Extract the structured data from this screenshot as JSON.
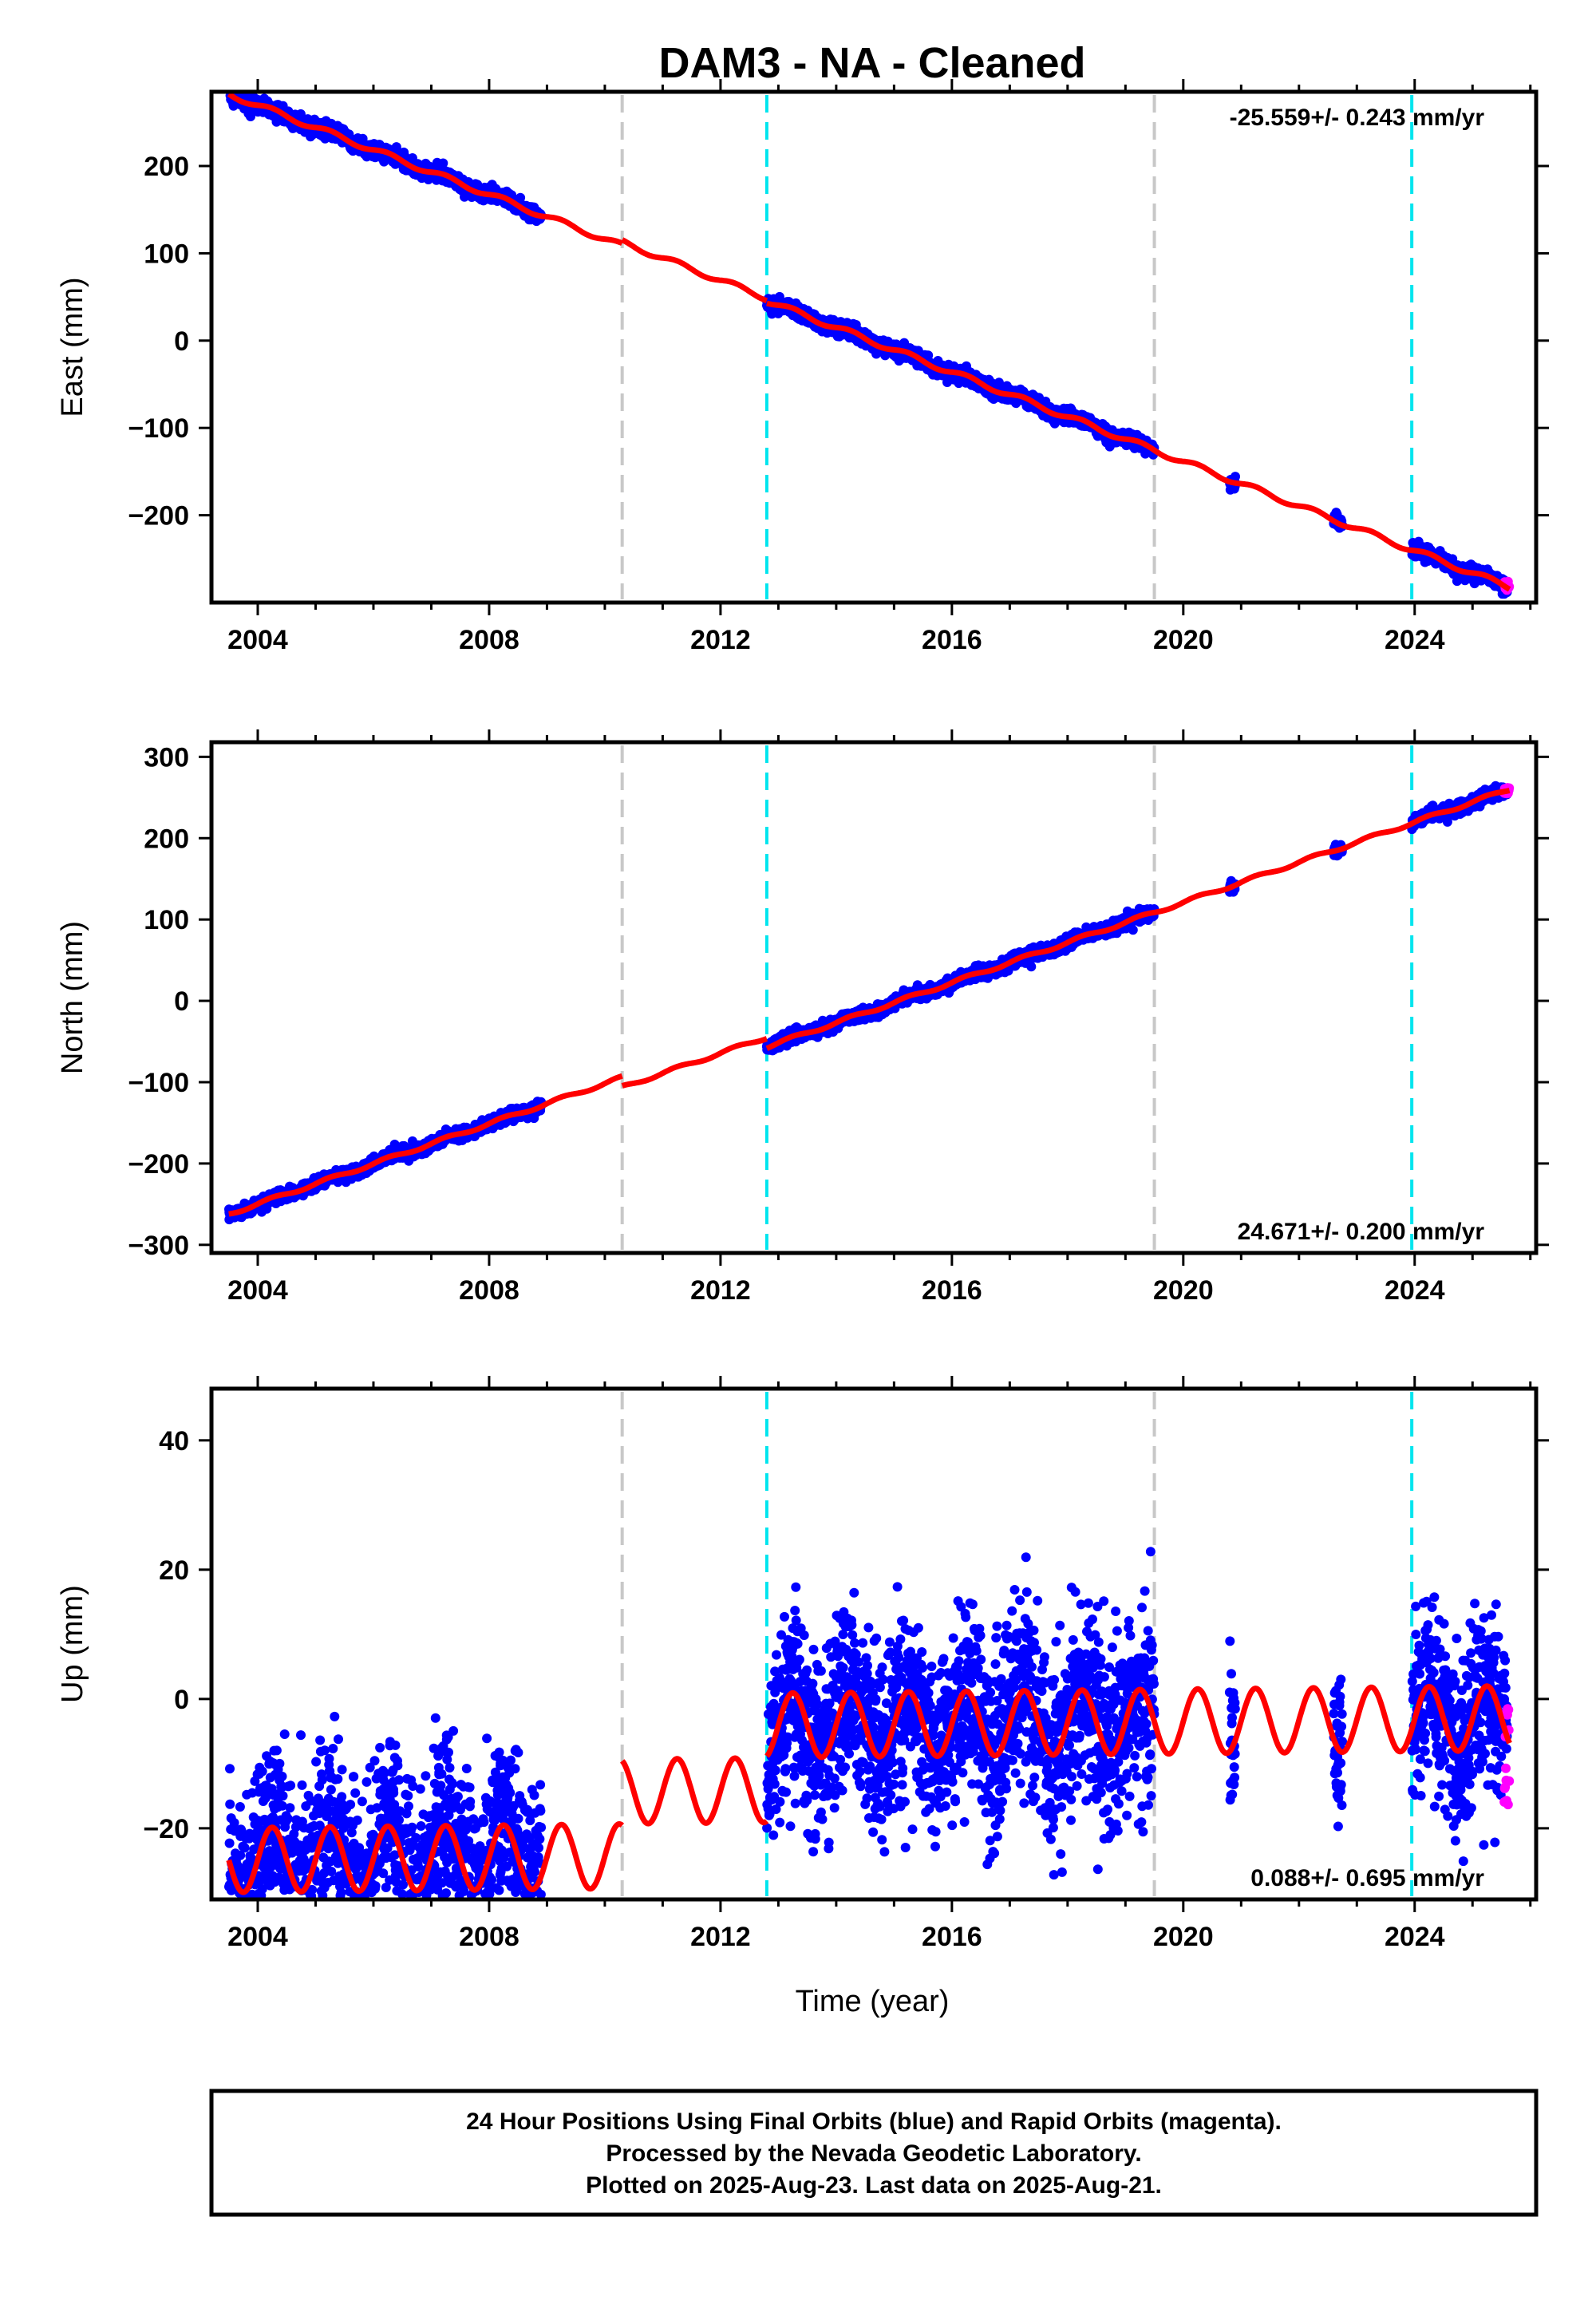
{
  "title": "DAM3  - NA - Cleaned",
  "xlabel": "Time (year)",
  "footer": [
    "24 Hour Positions Using Final Orbits (blue) and Rapid Orbits (magenta).",
    "Processed by the Nevada Geodetic Laboratory.",
    "Plotted on 2025-Aug-23. Last data on 2025-Aug-21."
  ],
  "colors": {
    "final": "#0000ff",
    "rapid": "#ff00ff",
    "model": "#ff0000",
    "equipment_change": "#c8c8c8",
    "earthquake": "#00e5ee"
  },
  "chart_data": [
    {
      "type": "scatter",
      "component": "East",
      "ylabel": "East (mm)",
      "rate_label": "-25.559+/- 0.243 mm/yr",
      "xlim": [
        2003.2,
        2026.1
      ],
      "ylim": [
        -300,
        285
      ],
      "xticks": [
        2004,
        2008,
        2012,
        2016,
        2020,
        2024
      ],
      "yticks": [
        -200,
        -100,
        0,
        100,
        200
      ],
      "rate": -25.559,
      "intercept_2014": 15,
      "annual_amp": 3,
      "data_segments": [
        [
          2003.5,
          2008.9
        ],
        [
          2012.8,
          2019.5
        ],
        [
          2020.8,
          2020.9
        ],
        [
          2022.6,
          2022.75
        ],
        [
          2023.95,
          2025.6
        ]
      ],
      "rapid_range": [
        2025.55,
        2025.64
      ],
      "scatter_sd": 4,
      "steps": [
        {
          "year": 2010.3,
          "offset": -4
        },
        {
          "year": 2012.8,
          "offset": 3
        }
      ],
      "grey_lines": [
        2010.3,
        2019.5
      ],
      "cyan_lines": [
        2012.8,
        2023.95
      ]
    },
    {
      "type": "scatter",
      "component": "North",
      "ylabel": "North (mm)",
      "rate_label": "24.671+/- 0.200 mm/yr",
      "xlim": [
        2003.2,
        2026.1
      ],
      "ylim": [
        -310,
        318
      ],
      "xticks": [
        2004,
        2008,
        2012,
        2016,
        2020,
        2024
      ],
      "yticks": [
        -300,
        -200,
        -100,
        0,
        100,
        200,
        300
      ],
      "rate": 24.671,
      "intercept_2014": -27,
      "annual_amp": 2,
      "data_segments": [
        [
          2003.5,
          2008.9
        ],
        [
          2012.8,
          2019.5
        ],
        [
          2020.8,
          2020.9
        ],
        [
          2022.6,
          2022.75
        ],
        [
          2023.95,
          2025.6
        ]
      ],
      "rapid_range": [
        2025.55,
        2025.64
      ],
      "scatter_sd": 3.5,
      "steps": [
        {
          "year": 2010.3,
          "offset": 12
        },
        {
          "year": 2012.8,
          "offset": 12
        }
      ],
      "grey_lines": [
        2010.3,
        2019.5
      ],
      "cyan_lines": [
        2012.8,
        2023.95
      ]
    },
    {
      "type": "scatter",
      "component": "Up",
      "ylabel": "Up (mm)",
      "rate_label": "0.088+/- 0.695 mm/yr",
      "xlim": [
        2003.2,
        2026.1
      ],
      "ylim": [
        -31,
        48
      ],
      "xticks": [
        2004,
        2008,
        2012,
        2016,
        2020,
        2024
      ],
      "yticks": [
        -20,
        0,
        20,
        40
      ],
      "rate": 0.088,
      "intercept_2014": -4,
      "annual_amp": 5,
      "data_segments": [
        [
          2003.5,
          2008.9
        ],
        [
          2012.8,
          2019.5
        ],
        [
          2020.8,
          2020.9
        ],
        [
          2022.6,
          2022.75
        ],
        [
          2023.95,
          2025.6
        ]
      ],
      "rapid_range": [
        2025.55,
        2025.64
      ],
      "scatter_sd": 7,
      "steps": [
        {
          "year": 2010.3,
          "offset": -10
        },
        {
          "year": 2012.8,
          "offset": -10
        }
      ],
      "grey_lines": [
        2010.3,
        2019.5
      ],
      "cyan_lines": [
        2012.8,
        2023.95
      ]
    }
  ]
}
